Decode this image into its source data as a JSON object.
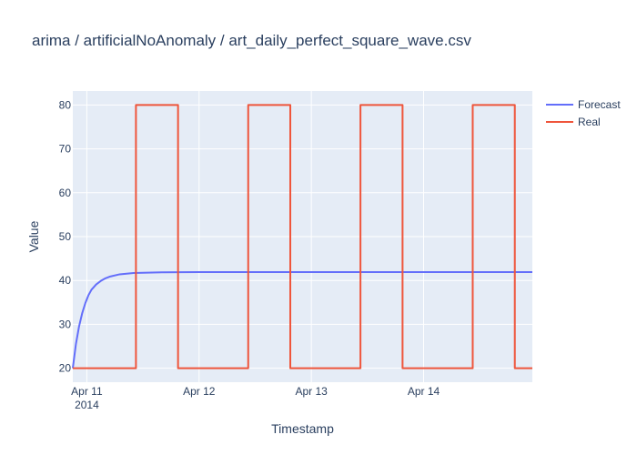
{
  "chart_data": {
    "type": "line",
    "title": "arima / artificialNoAnomaly / art_daily_perfect_square_wave.csv",
    "xlabel": "Timestamp",
    "ylabel": "Value",
    "x_range": [
      "2014-04-10 21:00",
      "2014-04-14 23:15"
    ],
    "ylim": [
      16.8,
      83.2
    ],
    "y_ticks": [
      20,
      30,
      40,
      50,
      60,
      70,
      80
    ],
    "x_ticks": [
      {
        "x": "2014-04-11 00:00",
        "label": "Apr 11",
        "sublabel": "2014"
      },
      {
        "x": "2014-04-12 00:00",
        "label": "Apr 12",
        "sublabel": ""
      },
      {
        "x": "2014-04-13 00:00",
        "label": "Apr 13",
        "sublabel": ""
      },
      {
        "x": "2014-04-14 00:00",
        "label": "Apr 14",
        "sublabel": ""
      }
    ],
    "grid": true,
    "legend_position": "top-right",
    "series": [
      {
        "name": "Forecast",
        "color": "#636efa",
        "points": [
          [
            "2014-04-10 21:00",
            20.0
          ],
          [
            "2014-04-10 21:40",
            25.5
          ],
          [
            "2014-04-10 22:20",
            29.5
          ],
          [
            "2014-04-10 23:00",
            32.5
          ],
          [
            "2014-04-10 23:40",
            34.8
          ],
          [
            "2014-04-11 00:20",
            36.6
          ],
          [
            "2014-04-11 01:00",
            37.9
          ],
          [
            "2014-04-11 02:00",
            39.1
          ],
          [
            "2014-04-11 03:00",
            39.9
          ],
          [
            "2014-04-11 04:00",
            40.5
          ],
          [
            "2014-04-11 05:00",
            40.9
          ],
          [
            "2014-04-11 07:00",
            41.4
          ],
          [
            "2014-04-11 10:00",
            41.7
          ],
          [
            "2014-04-11 16:00",
            41.85
          ],
          [
            "2014-04-12 00:00",
            41.9
          ],
          [
            "2014-04-12 12:00",
            41.9
          ],
          [
            "2014-04-14 23:15",
            41.9
          ]
        ]
      },
      {
        "name": "Real",
        "color": "#ef553b",
        "points": [
          [
            "2014-04-10 21:00",
            20
          ],
          [
            "2014-04-11 10:30",
            20
          ],
          [
            "2014-04-11 10:30",
            80
          ],
          [
            "2014-04-11 19:30",
            80
          ],
          [
            "2014-04-11 19:30",
            20
          ],
          [
            "2014-04-12 10:30",
            20
          ],
          [
            "2014-04-12 10:30",
            80
          ],
          [
            "2014-04-12 19:30",
            80
          ],
          [
            "2014-04-12 19:30",
            20
          ],
          [
            "2014-04-13 10:30",
            20
          ],
          [
            "2014-04-13 10:30",
            80
          ],
          [
            "2014-04-13 19:30",
            80
          ],
          [
            "2014-04-13 19:30",
            20
          ],
          [
            "2014-04-14 10:30",
            20
          ],
          [
            "2014-04-14 10:30",
            80
          ],
          [
            "2014-04-14 19:30",
            80
          ],
          [
            "2014-04-14 19:30",
            20
          ],
          [
            "2014-04-14 23:15",
            20
          ]
        ]
      }
    ]
  }
}
